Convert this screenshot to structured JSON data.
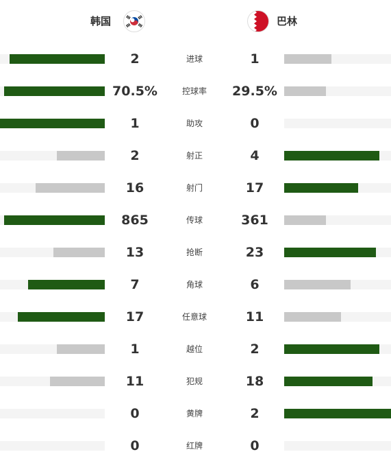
{
  "teams": {
    "home": {
      "name": "韩国"
    },
    "away": {
      "name": "巴林"
    }
  },
  "colors": {
    "leading": "#1f5a14",
    "trailing": "#c8c8c8",
    "track": "#f4f4f4"
  },
  "stats": [
    {
      "label": "进球",
      "home": "2",
      "away": "1",
      "home_fill": 0.91,
      "away_fill": 0.44,
      "leader": "home"
    },
    {
      "label": "控球率",
      "home": "70.5%",
      "away": "29.5%",
      "home_fill": 0.96,
      "away_fill": 0.39,
      "leader": "home"
    },
    {
      "label": "助攻",
      "home": "1",
      "away": "0",
      "home_fill": 1.0,
      "away_fill": 0.0,
      "leader": "home"
    },
    {
      "label": "射正",
      "home": "2",
      "away": "4",
      "home_fill": 0.46,
      "away_fill": 0.89,
      "leader": "away"
    },
    {
      "label": "射门",
      "home": "16",
      "away": "17",
      "home_fill": 0.66,
      "away_fill": 0.69,
      "leader": "away"
    },
    {
      "label": "传球",
      "home": "865",
      "away": "361",
      "home_fill": 0.96,
      "away_fill": 0.39,
      "leader": "home"
    },
    {
      "label": "抢断",
      "home": "13",
      "away": "23",
      "home_fill": 0.49,
      "away_fill": 0.86,
      "leader": "away"
    },
    {
      "label": "角球",
      "home": "7",
      "away": "6",
      "home_fill": 0.73,
      "away_fill": 0.62,
      "leader": "home"
    },
    {
      "label": "任意球",
      "home": "17",
      "away": "11",
      "home_fill": 0.83,
      "away_fill": 0.53,
      "leader": "home"
    },
    {
      "label": "越位",
      "home": "1",
      "away": "2",
      "home_fill": 0.46,
      "away_fill": 0.89,
      "leader": "away"
    },
    {
      "label": "犯规",
      "home": "11",
      "away": "18",
      "home_fill": 0.52,
      "away_fill": 0.83,
      "leader": "away"
    },
    {
      "label": "黄牌",
      "home": "0",
      "away": "2",
      "home_fill": 0.0,
      "away_fill": 1.0,
      "leader": "away"
    },
    {
      "label": "红牌",
      "home": "0",
      "away": "0",
      "home_fill": 0.0,
      "away_fill": 0.0,
      "leader": "none"
    }
  ]
}
